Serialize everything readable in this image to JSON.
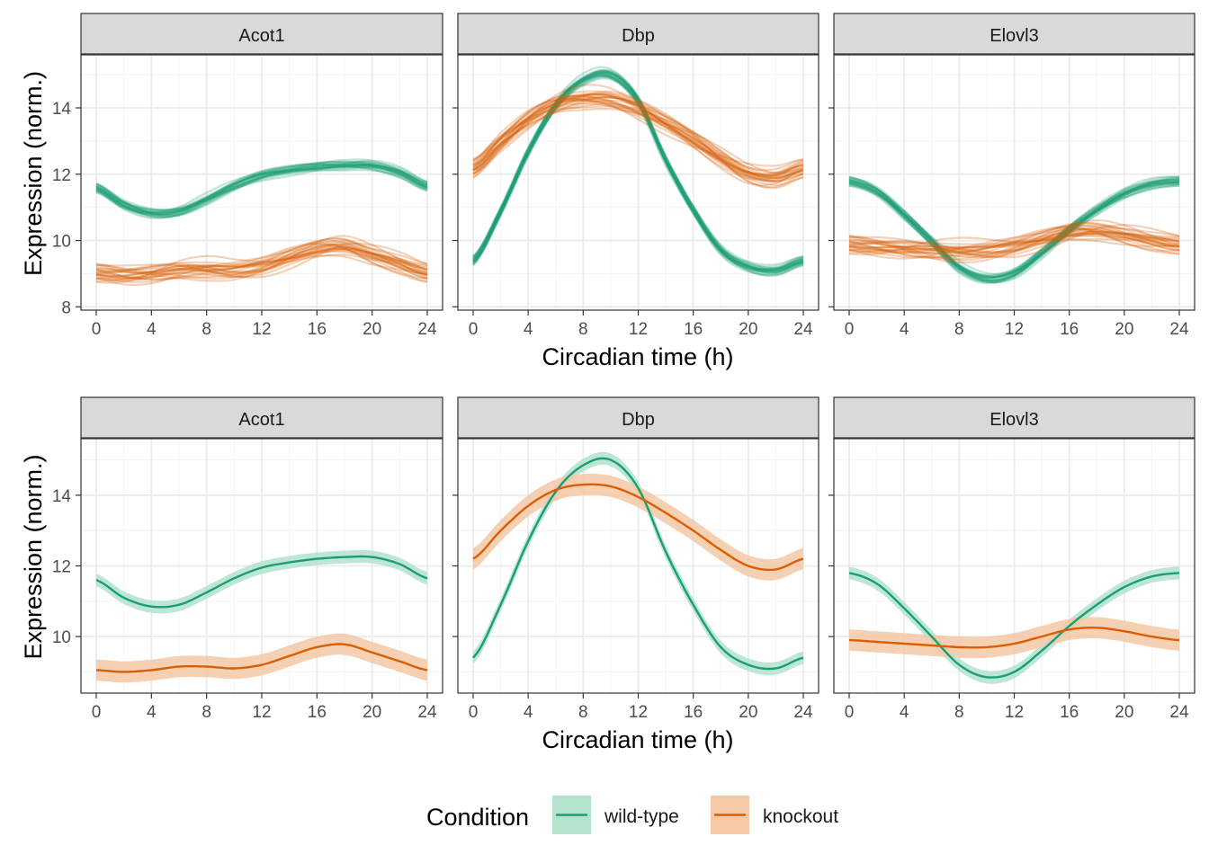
{
  "chart_data": [
    {
      "type": "line",
      "variant": "spaghetti",
      "facets": [
        "Acot1",
        "Dbp",
        "Elovl3"
      ],
      "xlabel": "Circadian time (h)",
      "ylabel": "Expression (norm.)",
      "xlim": [
        0,
        24
      ],
      "ylim": [
        8,
        15.5
      ],
      "xticks": [
        "0",
        "4",
        "8",
        "12",
        "16",
        "20",
        "24"
      ],
      "yticks": [
        "8",
        "10",
        "12",
        "14"
      ],
      "grid": true
    },
    {
      "type": "line",
      "variant": "mean_with_ribbon",
      "facets": [
        "Acot1",
        "Dbp",
        "Elovl3"
      ],
      "xlabel": "Circadian time (h)",
      "ylabel": "Expression (norm.)",
      "xlim": [
        0,
        24
      ],
      "ylim": [
        8.5,
        15.5
      ],
      "xticks": [
        "0",
        "4",
        "8",
        "12",
        "16",
        "20",
        "24"
      ],
      "yticks": [
        "10",
        "12",
        "14"
      ],
      "grid": true
    }
  ],
  "series": {
    "x": [
      0,
      2,
      4,
      6,
      8,
      10,
      12,
      14,
      16,
      18,
      20,
      22,
      24
    ],
    "wild_type": {
      "Acot1": [
        11.6,
        11.1,
        10.85,
        10.9,
        11.25,
        11.65,
        11.95,
        12.1,
        12.2,
        12.25,
        12.25,
        12.05,
        11.65
      ],
      "Dbp": [
        9.4,
        10.9,
        12.7,
        14.1,
        14.85,
        15.0,
        14.2,
        12.4,
        10.9,
        9.7,
        9.2,
        9.1,
        9.4
      ],
      "Elovl3": [
        11.8,
        11.5,
        10.8,
        10.0,
        9.2,
        8.85,
        9.0,
        9.6,
        10.3,
        10.9,
        11.4,
        11.7,
        11.8
      ]
    },
    "knockout": {
      "Acot1": [
        9.05,
        9.0,
        9.05,
        9.15,
        9.15,
        9.1,
        9.2,
        9.45,
        9.7,
        9.78,
        9.55,
        9.3,
        9.05
      ],
      "Dbp": [
        12.2,
        13.0,
        13.7,
        14.15,
        14.3,
        14.25,
        13.95,
        13.5,
        13.0,
        12.45,
        12.0,
        11.9,
        12.2
      ],
      "Elovl3": [
        9.9,
        9.85,
        9.8,
        9.75,
        9.7,
        9.7,
        9.8,
        10.0,
        10.2,
        10.25,
        10.15,
        10.0,
        9.9
      ]
    }
  },
  "ribbon_halfwidth": {
    "wild_type": 0.18,
    "knockout": 0.3
  },
  "legend": {
    "title": "Condition",
    "items": [
      {
        "label": "wild-type",
        "color": "#1b9e77",
        "fill": "#b3e2cd"
      },
      {
        "label": "knockout",
        "color": "#d95f02",
        "fill": "#f5c8a6"
      }
    ],
    "position": "bottom"
  },
  "colors": {
    "wild_type": "#1b9e77",
    "knockout": "#d95f02",
    "strip_fill": "#d9d9d9",
    "grid_major": "#ebebeb",
    "grid_minor": "#f5f5f5",
    "panel_border": "#333333"
  }
}
